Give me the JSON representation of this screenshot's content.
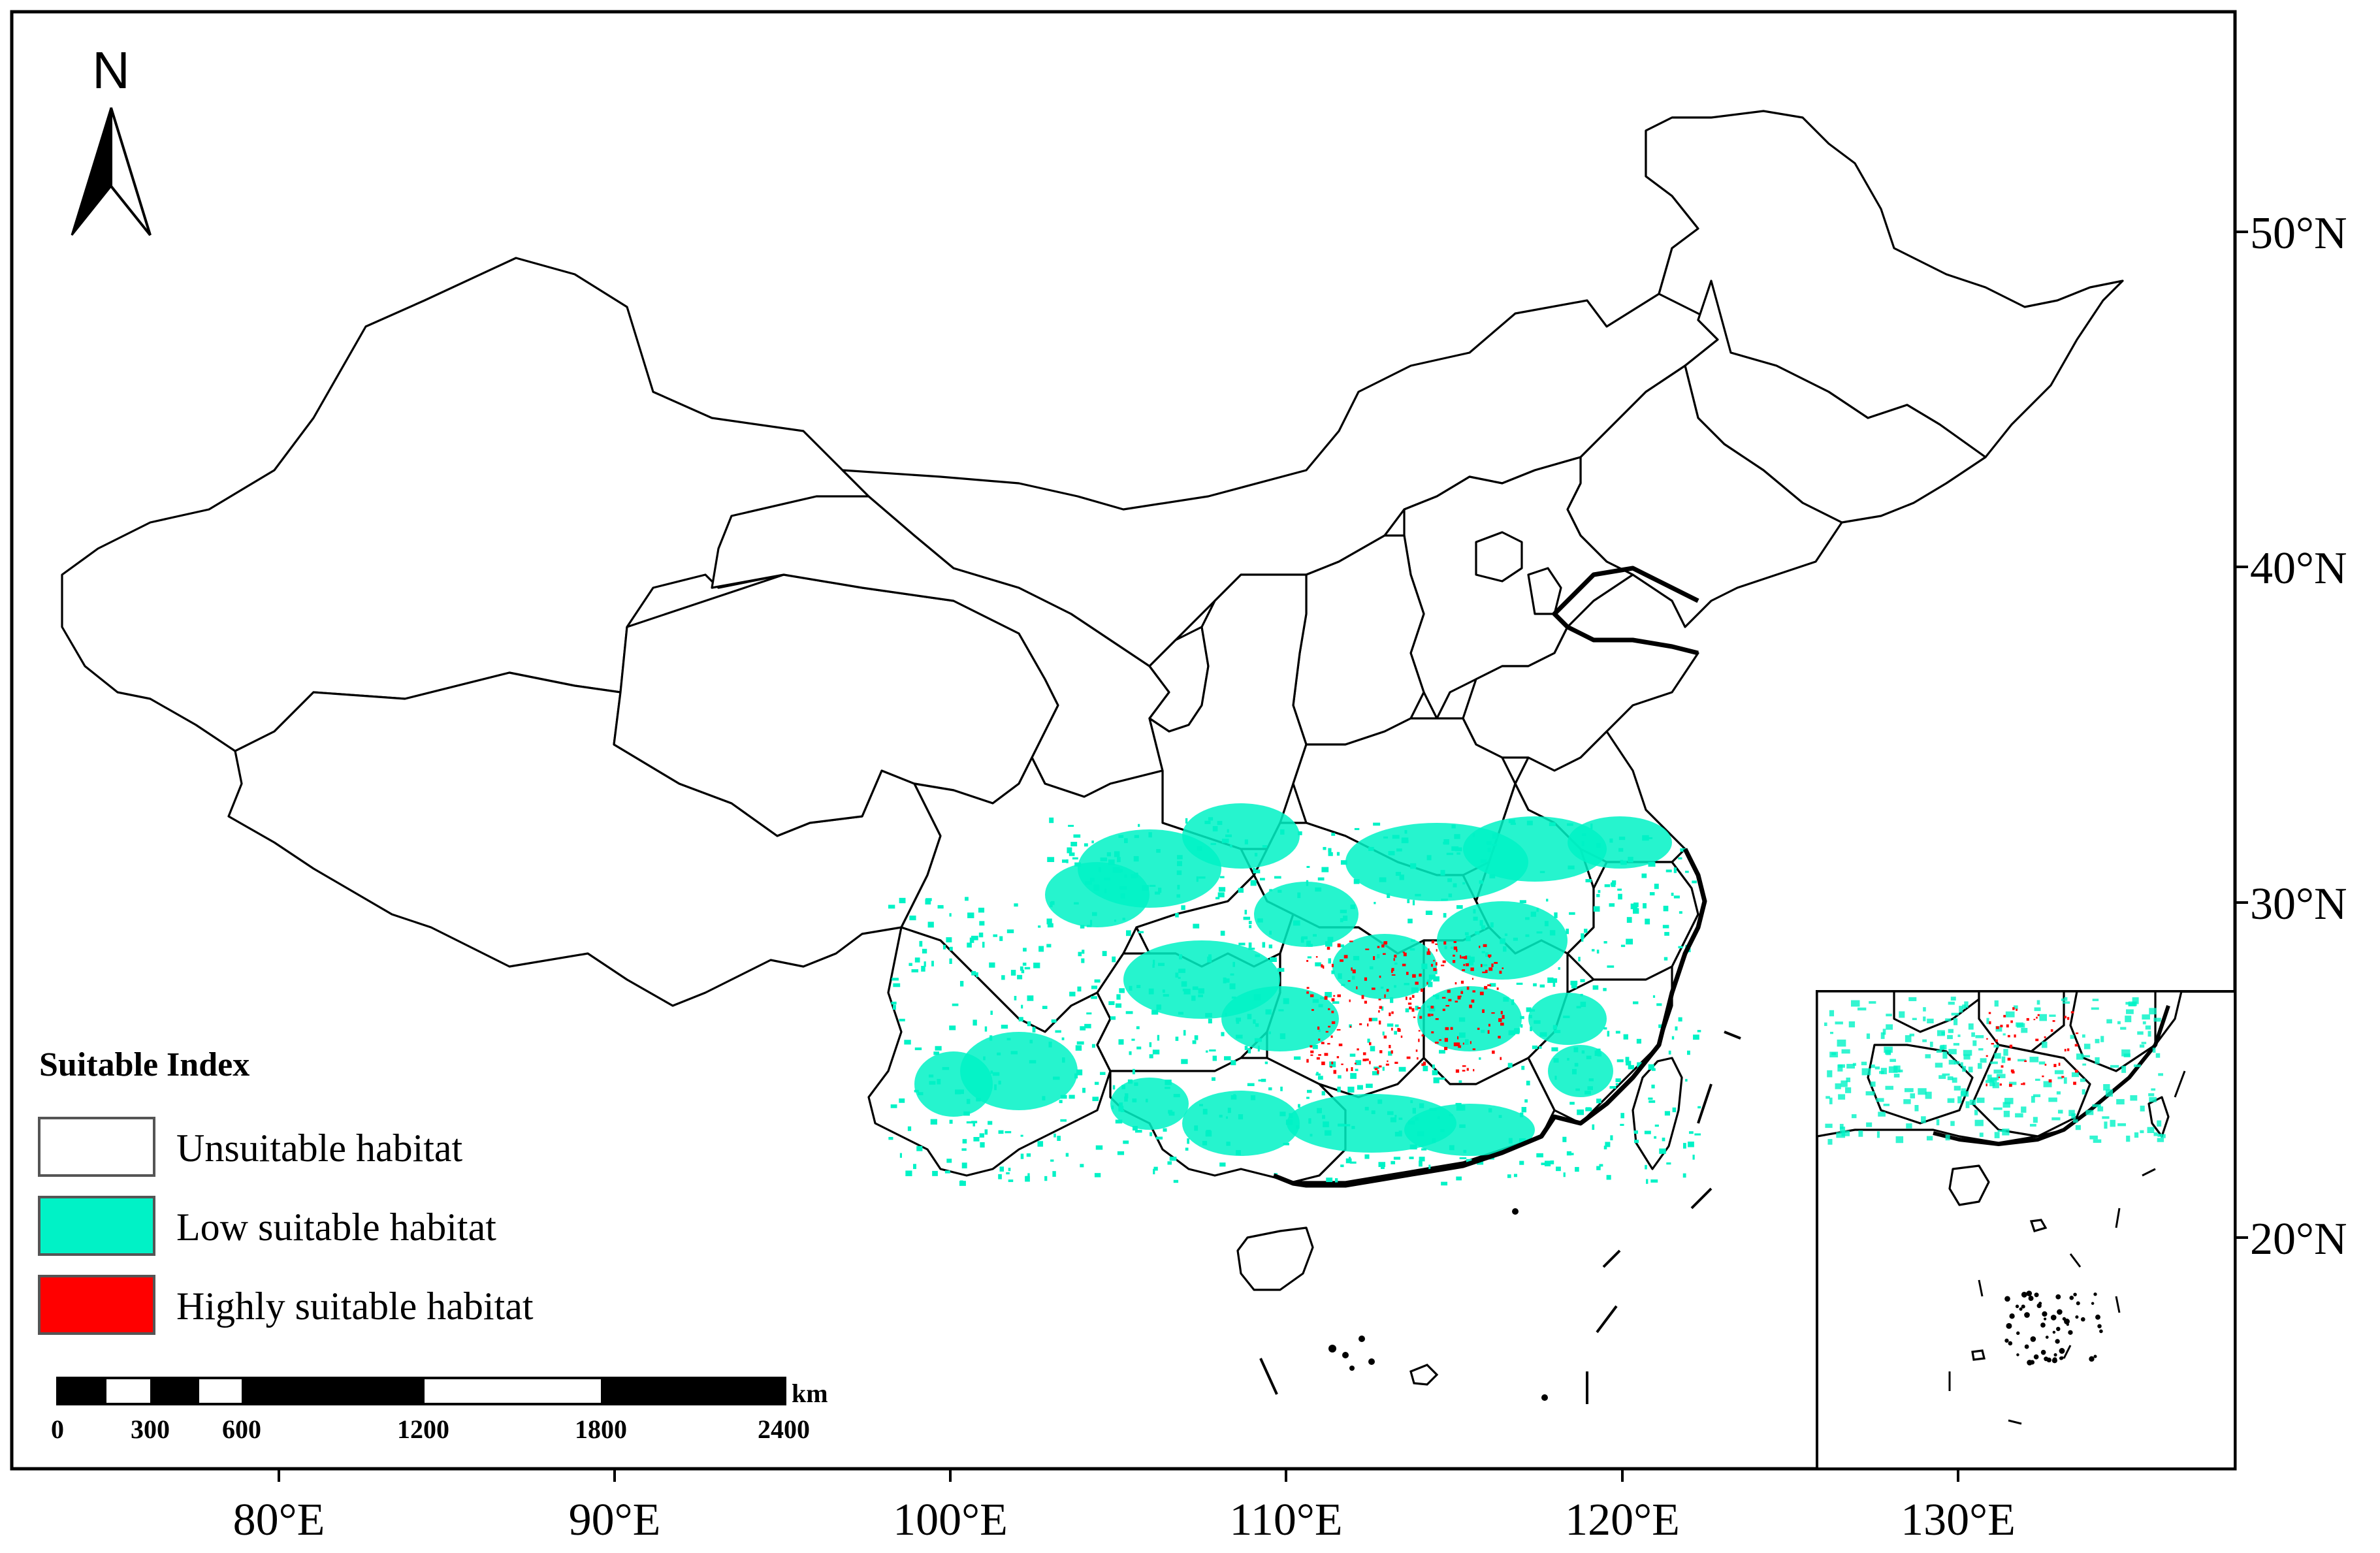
{
  "legend": {
    "title": "Suitable Index",
    "items": [
      {
        "label": "Unsuitable habitat",
        "color": "#ffffff"
      },
      {
        "label": "Low suitable habitat",
        "color": "#00f2c6"
      },
      {
        "label": "Highly suitable habitat",
        "color": "#ff0000"
      }
    ]
  },
  "north_arrow": {
    "label": "N"
  },
  "scale_bar": {
    "unit": "km",
    "labels": [
      "0",
      "300",
      "600",
      "1200",
      "1800",
      "2400"
    ]
  },
  "axes": {
    "x_ticks": [
      "80°E",
      "90°E",
      "100°E",
      "110°E",
      "120°E",
      "130°E"
    ],
    "y_ticks": [
      "50°N",
      "40°N",
      "30°N",
      "20°N"
    ]
  },
  "colors": {
    "low": "#00f2c6",
    "high": "#ff0000",
    "boundary": "#000000"
  }
}
